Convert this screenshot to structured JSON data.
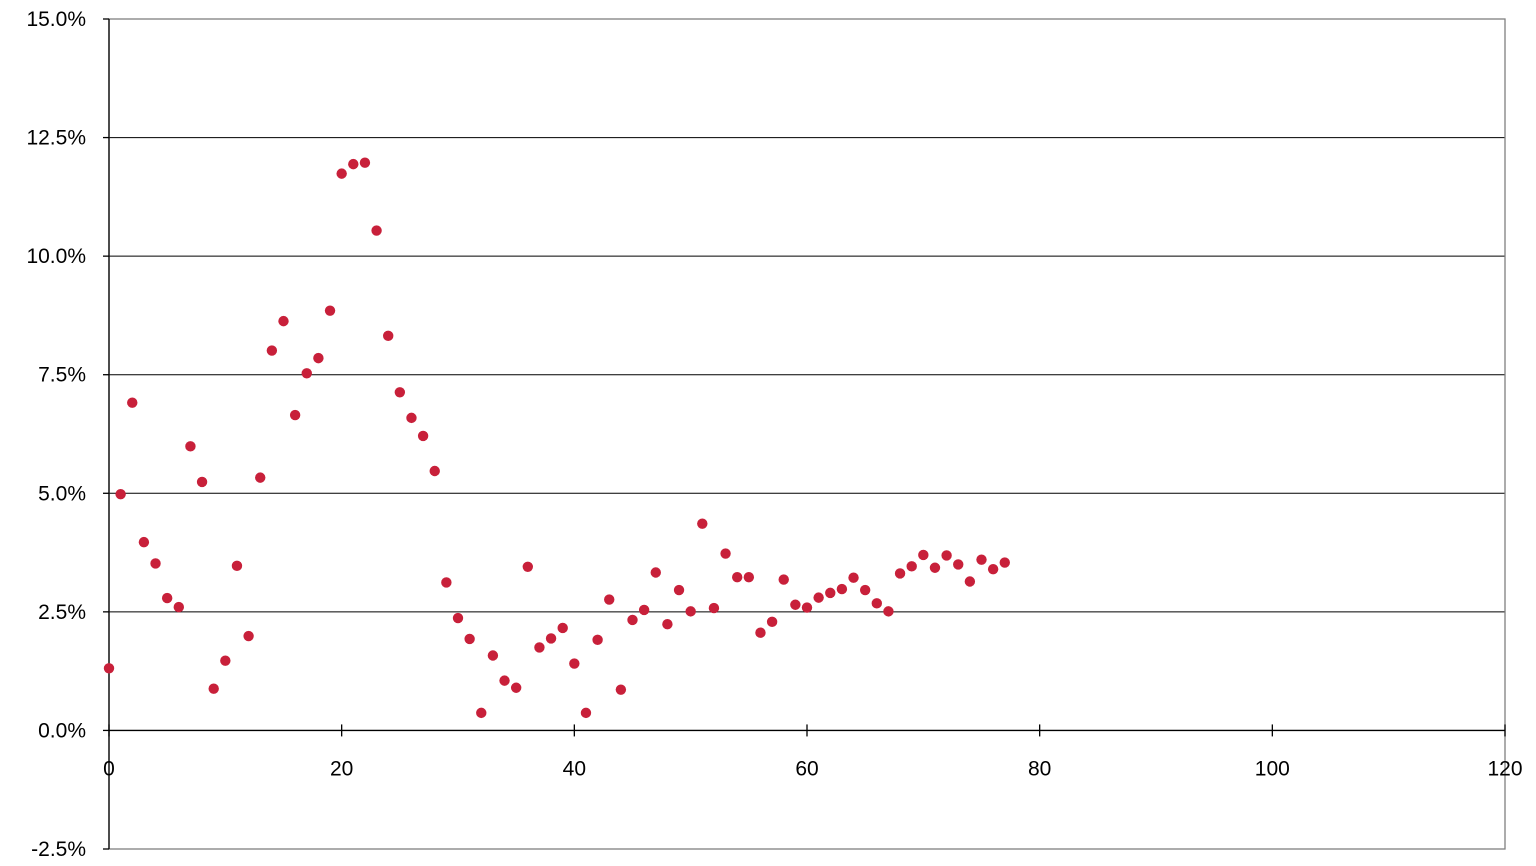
{
  "chart_data": {
    "type": "scatter",
    "title": "",
    "xlabel": "",
    "ylabel": "",
    "xlim": [
      0,
      120
    ],
    "ylim": [
      -0.025,
      0.15
    ],
    "x_ticks": [
      0,
      20,
      40,
      60,
      80,
      100,
      120
    ],
    "x_tick_labels": [
      "0",
      "20",
      "40",
      "60",
      "80",
      "100",
      "120"
    ],
    "y_ticks": [
      -0.025,
      0,
      0.025,
      0.05,
      0.075,
      0.1,
      0.125,
      0.15
    ],
    "y_tick_labels": [
      "-2.5%",
      "0.0%",
      "2.5%",
      "5.0%",
      "7.5%",
      "10.0%",
      "12.5%",
      "15.0%"
    ],
    "grid": "horizontal",
    "legend": "none",
    "marker_color": "#C8203A",
    "series": [
      {
        "x": [
          0,
          1,
          2,
          3,
          4,
          5,
          6,
          7,
          8,
          9,
          10,
          11,
          12,
          13,
          14,
          15,
          16,
          17,
          18,
          19,
          20,
          21,
          22,
          23,
          24,
          25,
          26,
          27,
          28,
          29,
          30,
          31,
          32,
          33,
          34,
          35,
          36,
          37,
          38,
          39,
          40,
          41,
          42,
          43,
          44,
          45,
          46,
          47,
          48,
          49,
          50,
          51,
          52,
          53,
          54,
          55,
          56,
          57,
          58,
          59,
          60,
          61,
          62,
          63,
          64,
          65,
          66,
          67,
          68,
          69,
          70,
          71,
          72,
          73,
          74,
          75,
          76,
          77
        ],
        "y": [
          0.0131,
          0.0498,
          0.0691,
          0.0397,
          0.0352,
          0.0279,
          0.026,
          0.0599,
          0.0524,
          0.0088,
          0.0147,
          0.0347,
          0.0199,
          0.0533,
          0.0801,
          0.0863,
          0.0665,
          0.0753,
          0.0785,
          0.0885,
          0.1174,
          0.1194,
          0.1197,
          0.1054,
          0.0832,
          0.0713,
          0.0659,
          0.0621,
          0.0547,
          0.0312,
          0.0237,
          0.0193,
          0.0037,
          0.0158,
          0.0105,
          0.009,
          0.0345,
          0.0175,
          0.0194,
          0.0216,
          0.0141,
          0.0037,
          0.0191,
          0.0276,
          0.0086,
          0.0233,
          0.0254,
          0.0333,
          0.0224,
          0.0296,
          0.0251,
          0.0436,
          0.0258,
          0.0373,
          0.0323,
          0.0323,
          0.0206,
          0.0229,
          0.0318,
          0.0265,
          0.0259,
          0.028,
          0.029,
          0.0298,
          0.0322,
          0.0296,
          0.0268,
          0.0251,
          0.0331,
          0.0346,
          0.037,
          0.0343,
          0.0369,
          0.035,
          0.0314,
          0.036,
          0.034,
          0.0354
        ]
      }
    ]
  }
}
